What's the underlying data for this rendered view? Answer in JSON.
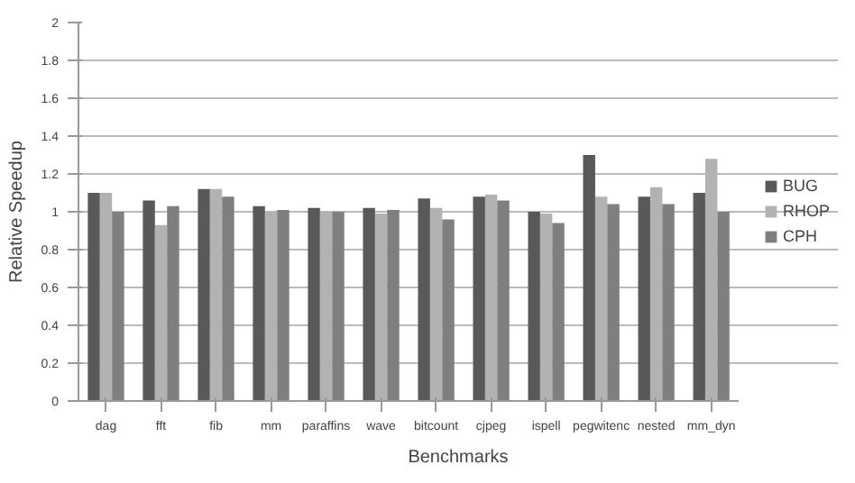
{
  "chart_data": {
    "type": "bar",
    "xlabel": "Benchmarks",
    "ylabel": "Relative Speedup",
    "categories": [
      "dag",
      "fft",
      "fib",
      "mm",
      "paraffins",
      "wave",
      "bitcount",
      "cjpeg",
      "ispell",
      "pegwitenc",
      "nested",
      "mm_dyn"
    ],
    "series": [
      {
        "name": "BUG",
        "color": "#595959",
        "values": [
          1.1,
          1.06,
          1.12,
          1.03,
          1.02,
          1.02,
          1.07,
          1.08,
          1.0,
          1.3,
          1.08,
          1.1
        ]
      },
      {
        "name": "RHOP",
        "color": "#b2b2b2",
        "values": [
          1.1,
          0.93,
          1.12,
          1.0,
          1.0,
          0.99,
          1.02,
          1.09,
          0.99,
          1.08,
          1.13,
          1.28
        ]
      },
      {
        "name": "CPH",
        "color": "#7f7f7f",
        "values": [
          1.0,
          1.03,
          1.08,
          1.01,
          1.0,
          1.01,
          0.96,
          1.06,
          0.94,
          1.04,
          1.04,
          1.0
        ]
      }
    ],
    "ylim": [
      0,
      2
    ],
    "yticks": [
      0,
      0.2,
      0.4,
      0.6,
      0.8,
      1,
      1.2,
      1.4,
      1.6,
      1.8,
      2
    ],
    "grid": "y",
    "legend": "right"
  }
}
